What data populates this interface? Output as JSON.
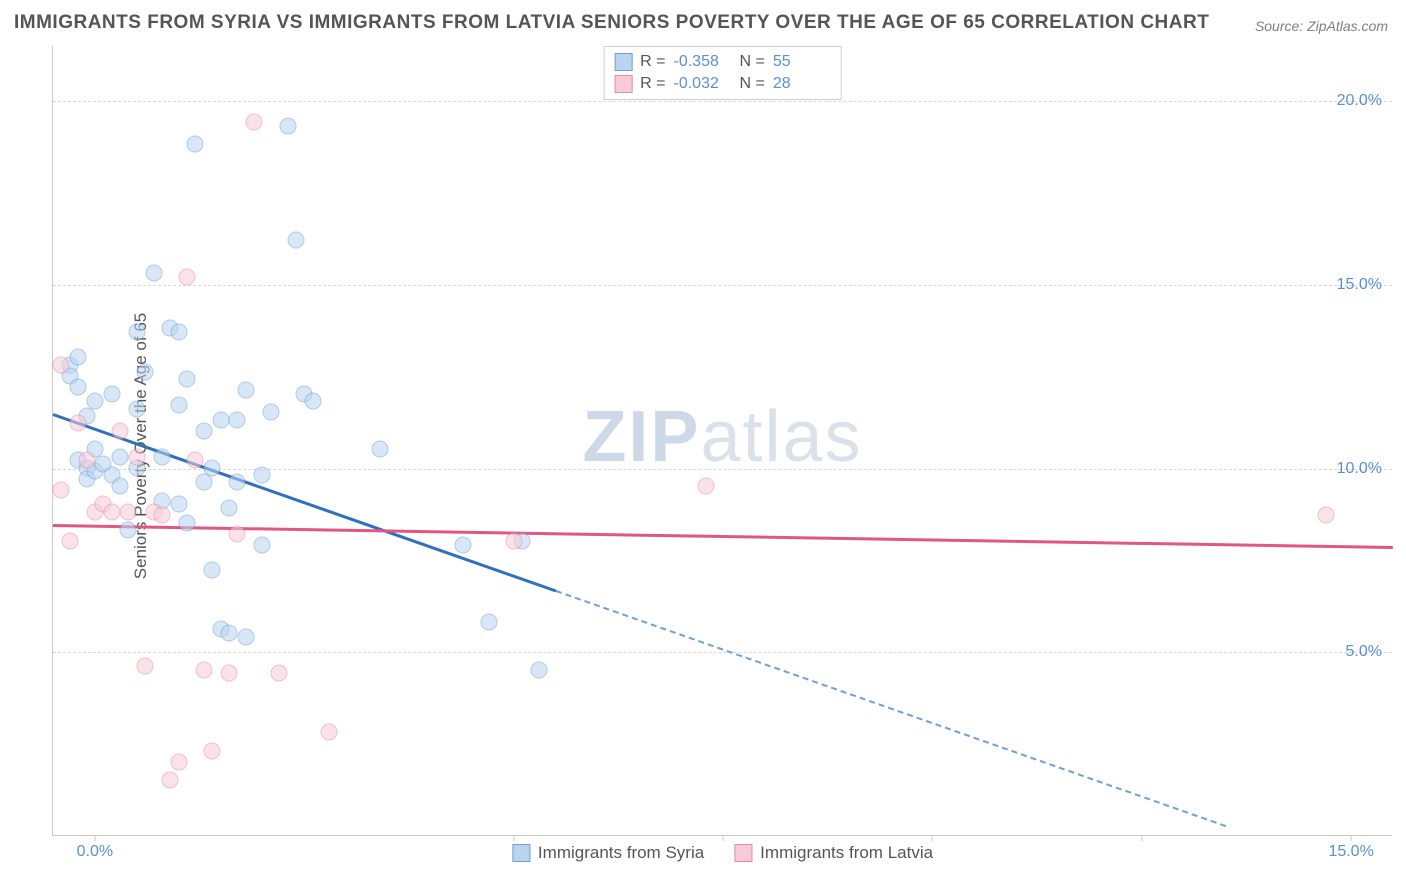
{
  "title": "IMMIGRANTS FROM SYRIA VS IMMIGRANTS FROM LATVIA SENIORS POVERTY OVER THE AGE OF 65 CORRELATION CHART",
  "source": "Source: ZipAtlas.com",
  "ylabel": "Seniors Poverty Over the Age of 65",
  "watermark_zip": "ZIP",
  "watermark_rest": "atlas",
  "chart": {
    "type": "scatter",
    "xlim": [
      -0.5,
      15.5
    ],
    "ylim": [
      0,
      21.5
    ],
    "yticks": [
      5.0,
      10.0,
      15.0,
      20.0
    ],
    "ytick_labels": [
      "5.0%",
      "10.0%",
      "15.0%",
      "20.0%"
    ],
    "xticks": [
      0.0,
      5.0,
      7.5,
      10.0,
      12.5,
      15.0
    ],
    "xtick_labels": [
      "0.0%",
      "",
      "",
      "",
      "",
      "15.0%"
    ],
    "background": "#ffffff",
    "grid_color": "#d8d8d8",
    "axis_color": "#c8c8c8",
    "tick_label_color": "#5a8fd6",
    "series": [
      {
        "name": "Immigrants from Syria",
        "color_fill": "#b9d4ef",
        "color_stroke": "#6ea0d8",
        "marker_size": 17,
        "R": "-0.358",
        "N": "55",
        "regression": {
          "x1": -0.5,
          "y1": 11.5,
          "x2": 5.5,
          "y2": 6.7,
          "solid_color": "#2f6fc0"
        },
        "regression_ext": {
          "x1": 5.5,
          "y1": 6.7,
          "x2": 13.5,
          "y2": 0.3,
          "dash_color": "#6ea0d8"
        },
        "points": [
          [
            -0.3,
            12.8
          ],
          [
            -0.3,
            12.5
          ],
          [
            -0.2,
            13.0
          ],
          [
            -0.2,
            12.2
          ],
          [
            -0.2,
            10.2
          ],
          [
            -0.1,
            11.4
          ],
          [
            -0.1,
            10.0
          ],
          [
            -0.1,
            9.7
          ],
          [
            0.0,
            10.5
          ],
          [
            0.0,
            9.9
          ],
          [
            0.0,
            11.8
          ],
          [
            0.1,
            10.1
          ],
          [
            0.2,
            9.8
          ],
          [
            0.2,
            12.0
          ],
          [
            0.3,
            10.3
          ],
          [
            0.3,
            9.5
          ],
          [
            0.4,
            8.3
          ],
          [
            0.5,
            13.7
          ],
          [
            0.5,
            11.6
          ],
          [
            0.5,
            10.0
          ],
          [
            0.6,
            12.6
          ],
          [
            0.7,
            15.3
          ],
          [
            0.8,
            9.1
          ],
          [
            0.8,
            10.3
          ],
          [
            0.9,
            13.8
          ],
          [
            1.0,
            11.7
          ],
          [
            1.0,
            13.7
          ],
          [
            1.0,
            9.0
          ],
          [
            1.1,
            12.4
          ],
          [
            1.1,
            8.5
          ],
          [
            1.2,
            18.8
          ],
          [
            1.3,
            11.0
          ],
          [
            1.3,
            9.6
          ],
          [
            1.4,
            10.0
          ],
          [
            1.4,
            7.2
          ],
          [
            1.5,
            11.3
          ],
          [
            1.5,
            5.6
          ],
          [
            1.6,
            8.9
          ],
          [
            1.6,
            5.5
          ],
          [
            1.7,
            9.6
          ],
          [
            1.7,
            11.3
          ],
          [
            1.8,
            5.4
          ],
          [
            1.8,
            12.1
          ],
          [
            2.0,
            9.8
          ],
          [
            2.0,
            7.9
          ],
          [
            2.1,
            11.5
          ],
          [
            2.3,
            19.3
          ],
          [
            2.4,
            16.2
          ],
          [
            2.5,
            12.0
          ],
          [
            2.6,
            11.8
          ],
          [
            3.4,
            10.5
          ],
          [
            4.4,
            7.9
          ],
          [
            4.7,
            5.8
          ],
          [
            5.3,
            4.5
          ],
          [
            5.1,
            8.0
          ]
        ]
      },
      {
        "name": "Immigrants from Latvia",
        "color_fill": "#f6cdd7",
        "color_stroke": "#e88aa5",
        "marker_size": 17,
        "R": "-0.032",
        "N": "28",
        "regression": {
          "x1": -0.5,
          "y1": 8.5,
          "x2": 15.5,
          "y2": 7.9,
          "solid_color": "#e05880"
        },
        "points": [
          [
            -0.4,
            12.8
          ],
          [
            -0.4,
            9.4
          ],
          [
            -0.3,
            8.0
          ],
          [
            -0.2,
            11.2
          ],
          [
            -0.1,
            10.2
          ],
          [
            0.0,
            8.8
          ],
          [
            0.1,
            9.0
          ],
          [
            0.2,
            8.8
          ],
          [
            0.3,
            11.0
          ],
          [
            0.4,
            8.8
          ],
          [
            0.5,
            10.3
          ],
          [
            0.6,
            4.6
          ],
          [
            0.7,
            8.8
          ],
          [
            0.8,
            8.7
          ],
          [
            0.9,
            1.5
          ],
          [
            1.0,
            2.0
          ],
          [
            1.1,
            15.2
          ],
          [
            1.2,
            10.2
          ],
          [
            1.3,
            4.5
          ],
          [
            1.4,
            2.3
          ],
          [
            1.6,
            4.4
          ],
          [
            1.7,
            8.2
          ],
          [
            1.9,
            19.4
          ],
          [
            2.2,
            4.4
          ],
          [
            2.8,
            2.8
          ],
          [
            5.0,
            8.0
          ],
          [
            7.3,
            9.5
          ],
          [
            14.7,
            8.7
          ]
        ]
      }
    ]
  },
  "legend_bottom": [
    "Immigrants from Syria",
    "Immigrants from Latvia"
  ]
}
